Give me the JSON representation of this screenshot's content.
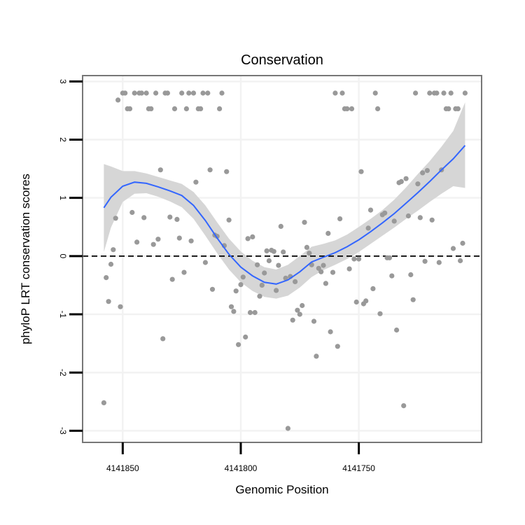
{
  "chart_data": {
    "type": "scatter",
    "title": "Conservation",
    "xlabel": "Genomic Position",
    "ylabel": "phyloP LRT conservation scores",
    "x_axis": {
      "reversed": true,
      "ticks": [
        4141850,
        4141800,
        4141750
      ],
      "tick_labels": [
        "4141850",
        "4141800",
        "4141750"
      ],
      "xlim": [
        4141867,
        4141698
      ]
    },
    "y_axis": {
      "ticks": [
        -3,
        -2,
        -1,
        0,
        1,
        2,
        3
      ],
      "tick_labels": [
        "-3",
        "-2",
        "-1",
        "0",
        "1",
        "2",
        "3"
      ],
      "ylim": [
        -3.2,
        3.1
      ]
    },
    "grid": true,
    "reference_line": {
      "y": 0,
      "style": "dashed",
      "color": "#000000"
    },
    "colors": {
      "points": "#999999",
      "smooth": "#3366ff",
      "band": "#d6d6d6",
      "frame": "#777777",
      "grid": "#f2f2f2"
    },
    "series": [
      {
        "kind": "points",
        "points": [
          [
            4141858,
            -2.52
          ],
          [
            4141857,
            -0.37
          ],
          [
            4141856,
            -0.78
          ],
          [
            4141855,
            -0.14
          ],
          [
            4141854,
            0.11
          ],
          [
            4141853,
            0.65
          ],
          [
            4141852,
            2.68
          ],
          [
            4141851,
            -0.87
          ],
          [
            4141850,
            2.8
          ],
          [
            4141849,
            2.8
          ],
          [
            4141848,
            2.53
          ],
          [
            4141847,
            2.53
          ],
          [
            4141846,
            0.75
          ],
          [
            4141845,
            2.8
          ],
          [
            4141844,
            0.24
          ],
          [
            4141843,
            2.8
          ],
          [
            4141842,
            2.8
          ],
          [
            4141841,
            0.66
          ],
          [
            4141840,
            2.8
          ],
          [
            4141839,
            2.53
          ],
          [
            4141838,
            2.53
          ],
          [
            4141837,
            0.2
          ],
          [
            4141836,
            2.8
          ],
          [
            4141835,
            0.29
          ],
          [
            4141834,
            1.48
          ],
          [
            4141833,
            -1.42
          ],
          [
            4141832,
            2.8
          ],
          [
            4141831,
            2.8
          ],
          [
            4141830,
            0.67
          ],
          [
            4141829,
            -0.4
          ],
          [
            4141828,
            2.53
          ],
          [
            4141827,
            0.63
          ],
          [
            4141826,
            0.31
          ],
          [
            4141825,
            2.8
          ],
          [
            4141824,
            -0.28
          ],
          [
            4141823,
            2.53
          ],
          [
            4141822,
            2.8
          ],
          [
            4141821,
            0.26
          ],
          [
            4141820,
            2.8
          ],
          [
            4141819,
            1.27
          ],
          [
            4141818,
            2.53
          ],
          [
            4141817,
            2.53
          ],
          [
            4141816,
            2.8
          ],
          [
            4141815,
            -0.11
          ],
          [
            4141814,
            2.8
          ],
          [
            4141813,
            1.48
          ],
          [
            4141812,
            -0.57
          ],
          [
            4141811,
            0.36
          ],
          [
            4141810,
            0.34
          ],
          [
            4141809,
            2.53
          ],
          [
            4141808,
            2.8
          ],
          [
            4141807,
            0.18
          ],
          [
            4141806,
            1.45
          ],
          [
            4141805,
            0.62
          ],
          [
            4141804,
            -0.87
          ],
          [
            4141803,
            -0.95
          ],
          [
            4141802,
            -0.6
          ],
          [
            4141801,
            -1.52
          ],
          [
            4141800,
            -0.49
          ],
          [
            4141799,
            -0.36
          ],
          [
            4141798,
            -1.39
          ],
          [
            4141797,
            0.3
          ],
          [
            4141796,
            -0.97
          ],
          [
            4141795,
            0.33
          ],
          [
            4141794,
            -0.97
          ],
          [
            4141793,
            -0.15
          ],
          [
            4141792,
            -0.69
          ],
          [
            4141791,
            -0.5
          ],
          [
            4141790,
            -0.29
          ],
          [
            4141789,
            0.09
          ],
          [
            4141788,
            -0.08
          ],
          [
            4141787,
            0.1
          ],
          [
            4141786,
            0.08
          ],
          [
            4141785,
            -0.59
          ],
          [
            4141784,
            -0.16
          ],
          [
            4141783,
            0.51
          ],
          [
            4141782,
            0.07
          ],
          [
            4141781,
            -0.38
          ],
          [
            4141780,
            -2.96
          ],
          [
            4141779,
            -0.35
          ],
          [
            4141778,
            -1.1
          ],
          [
            4141777,
            -0.44
          ],
          [
            4141776,
            -0.93
          ],
          [
            4141775,
            -1.0
          ],
          [
            4141774,
            -0.85
          ],
          [
            4141773,
            0.58
          ],
          [
            4141772,
            0.15
          ],
          [
            4141771,
            0.05
          ],
          [
            4141770,
            -0.15
          ],
          [
            4141769,
            -1.12
          ],
          [
            4141768,
            -1.72
          ],
          [
            4141767,
            -0.21
          ],
          [
            4141766,
            -0.27
          ],
          [
            4141765,
            -0.16
          ],
          [
            4141764,
            -0.47
          ],
          [
            4141763,
            0.39
          ],
          [
            4141762,
            -1.3
          ],
          [
            4141761,
            -0.28
          ],
          [
            4141760,
            2.8
          ],
          [
            4141759,
            -1.55
          ],
          [
            4141758,
            0.64
          ],
          [
            4141757,
            2.8
          ],
          [
            4141756,
            2.53
          ],
          [
            4141755,
            2.53
          ],
          [
            4141754,
            -0.22
          ],
          [
            4141753,
            2.53
          ],
          [
            4141752,
            -0.05
          ],
          [
            4141751,
            -0.79
          ],
          [
            4141750,
            -0.05
          ],
          [
            4141749,
            1.45
          ],
          [
            4141748,
            -0.82
          ],
          [
            4141747,
            -0.77
          ],
          [
            4141746,
            0.48
          ],
          [
            4141745,
            0.79
          ],
          [
            4141744,
            -0.56
          ],
          [
            4141743,
            2.8
          ],
          [
            4141742,
            2.53
          ],
          [
            4141741,
            -0.99
          ],
          [
            4141740,
            0.71
          ],
          [
            4141739,
            0.74
          ],
          [
            4141738,
            -0.03
          ],
          [
            4141737,
            -0.03
          ],
          [
            4141736,
            -0.34
          ],
          [
            4141735,
            0.6
          ],
          [
            4141734,
            -1.27
          ],
          [
            4141733,
            1.26
          ],
          [
            4141732,
            1.28
          ],
          [
            4141731,
            -2.57
          ],
          [
            4141730,
            1.33
          ],
          [
            4141729,
            0.69
          ],
          [
            4141728,
            -0.32
          ],
          [
            4141727,
            -0.75
          ],
          [
            4141726,
            2.8
          ],
          [
            4141725,
            1.24
          ],
          [
            4141724,
            0.66
          ],
          [
            4141723,
            1.43
          ],
          [
            4141722,
            -0.09
          ],
          [
            4141721,
            1.47
          ],
          [
            4141720,
            2.8
          ],
          [
            4141719,
            0.62
          ],
          [
            4141718,
            2.8
          ],
          [
            4141717,
            2.8
          ],
          [
            4141716,
            -0.11
          ],
          [
            4141715,
            1.48
          ],
          [
            4141714,
            2.8
          ],
          [
            4141713,
            2.53
          ],
          [
            4141712,
            2.53
          ],
          [
            4141711,
            2.8
          ],
          [
            4141710,
            0.13
          ],
          [
            4141709,
            2.53
          ],
          [
            4141708,
            2.53
          ],
          [
            4141707,
            -0.08
          ],
          [
            4141706,
            0.22
          ],
          [
            4141705,
            2.8
          ]
        ]
      },
      {
        "kind": "smooth",
        "points": [
          [
            4141858,
            0.83
          ],
          [
            4141855,
            1.01
          ],
          [
            4141850,
            1.2
          ],
          [
            4141845,
            1.27
          ],
          [
            4141840,
            1.25
          ],
          [
            4141835,
            1.19
          ],
          [
            4141830,
            1.12
          ],
          [
            4141825,
            1.04
          ],
          [
            4141820,
            0.87
          ],
          [
            4141815,
            0.61
          ],
          [
            4141810,
            0.31
          ],
          [
            4141805,
            0.03
          ],
          [
            4141800,
            -0.19
          ],
          [
            4141795,
            -0.34
          ],
          [
            4141790,
            -0.45
          ],
          [
            4141785,
            -0.48
          ],
          [
            4141780,
            -0.41
          ],
          [
            4141775,
            -0.27
          ],
          [
            4141770,
            -0.1
          ],
          [
            4141765,
            -0.02
          ],
          [
            4141760,
            0.06
          ],
          [
            4141755,
            0.16
          ],
          [
            4141750,
            0.28
          ],
          [
            4141745,
            0.42
          ],
          [
            4141740,
            0.57
          ],
          [
            4141735,
            0.73
          ],
          [
            4141730,
            0.91
          ],
          [
            4141725,
            1.09
          ],
          [
            4141720,
            1.28
          ],
          [
            4141715,
            1.48
          ],
          [
            4141710,
            1.67
          ],
          [
            4141705,
            1.9
          ]
        ],
        "lower": [
          0.07,
          0.49,
          0.93,
          1.07,
          1.08,
          1.02,
          0.94,
          0.84,
          0.64,
          0.35,
          0.05,
          -0.23,
          -0.45,
          -0.6,
          -0.7,
          -0.73,
          -0.68,
          -0.54,
          -0.36,
          -0.24,
          -0.15,
          -0.05,
          0.07,
          0.21,
          0.35,
          0.49,
          0.64,
          0.78,
          0.93,
          1.07,
          1.2,
          1.17
        ],
        "upper": [
          1.58,
          1.54,
          1.46,
          1.46,
          1.42,
          1.36,
          1.3,
          1.24,
          1.1,
          0.87,
          0.58,
          0.3,
          0.08,
          -0.08,
          -0.19,
          -0.23,
          -0.15,
          0.0,
          0.16,
          0.21,
          0.27,
          0.37,
          0.5,
          0.64,
          0.79,
          0.97,
          1.18,
          1.41,
          1.63,
          1.88,
          2.15,
          2.64
        ]
      }
    ]
  }
}
